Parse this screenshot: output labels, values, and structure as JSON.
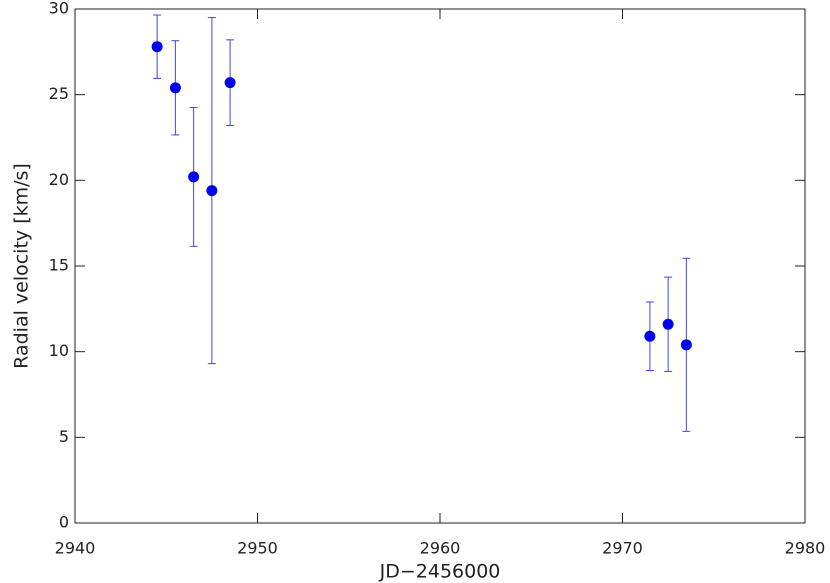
{
  "chart_data": {
    "type": "scatter",
    "x_label": "JD−2456000",
    "y_label": "Radial velocity  [km/s]",
    "x": [
      2944.5,
      2945.5,
      2946.5,
      2947.5,
      2948.5,
      2971.5,
      2972.5,
      2973.5
    ],
    "values": [
      27.8,
      25.4,
      20.2,
      19.4,
      25.7,
      10.9,
      11.6,
      10.4
    ],
    "errors": [
      1.85,
      2.75,
      4.05,
      10.1,
      2.5,
      2.0,
      2.75,
      5.05
    ],
    "color": "#0000ee",
    "error_color": "#4444dd",
    "xlim": [
      2940,
      2980
    ],
    "xticks": [
      2940,
      2950,
      2960,
      2970,
      2980
    ],
    "ylim": [
      0,
      30
    ],
    "yticks": [
      0,
      5,
      10,
      15,
      20,
      25,
      30
    ]
  }
}
